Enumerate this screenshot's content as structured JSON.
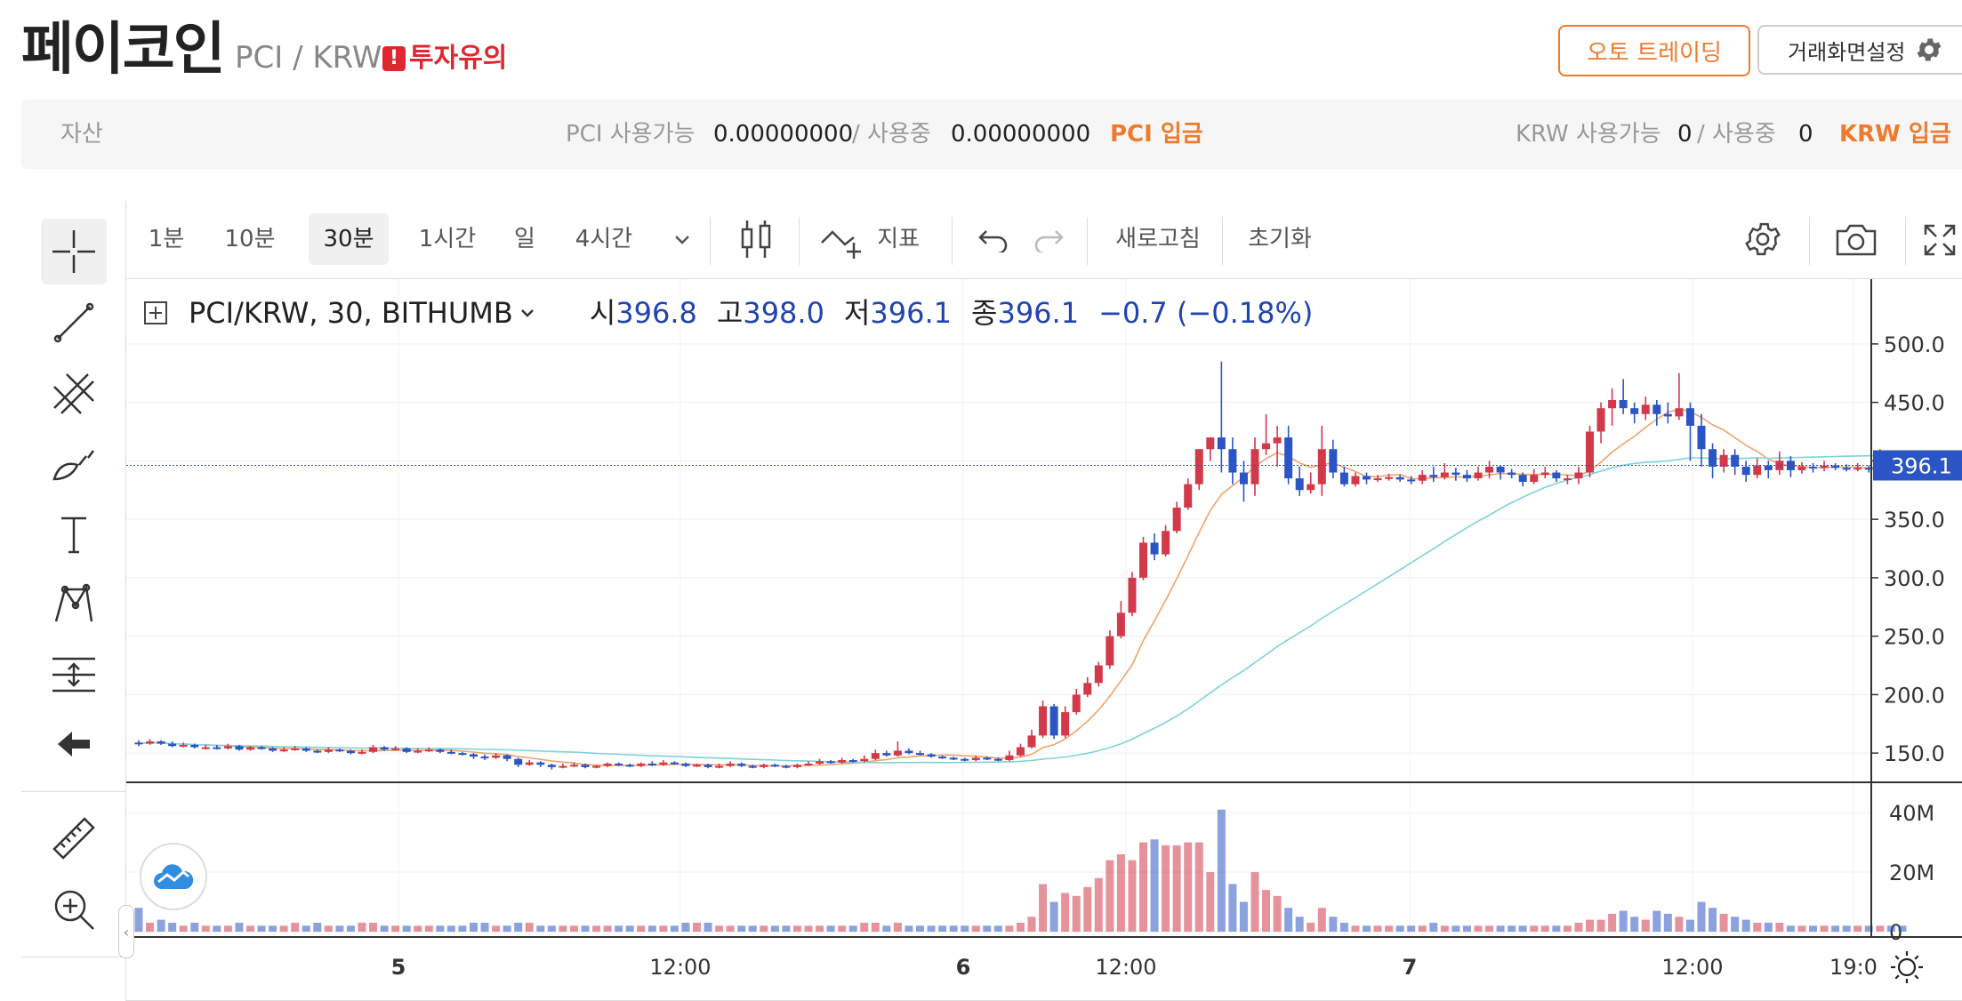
{
  "header": {
    "coin_name": "페이코인",
    "pair": "PCI / KRW",
    "warning": "투자유의",
    "warning_icon": "exclamation-icon",
    "auto_trading": "오토 트레이딩",
    "screen_settings": "거래화면설정"
  },
  "assets": {
    "label": "자산",
    "pci_available_label": "PCI 사용가능",
    "pci_available": "0.00000000",
    "pci_sep": "/ 사용중",
    "pci_in_use": "0.00000000",
    "pci_deposit": "PCI 입금",
    "krw_available_label": "KRW 사용가능",
    "krw_available": "0",
    "krw_sep": "/ 사용중",
    "krw_in_use": "0",
    "krw_deposit": "KRW 입금"
  },
  "toolbar": {
    "intervals": [
      "1분",
      "10분",
      "30분",
      "1시간",
      "일",
      "4시간"
    ],
    "active_interval": "30분",
    "indicator": "지표",
    "refresh": "새로고침",
    "reset": "초기화"
  },
  "legend": {
    "symbol": "PCI/KRW, 30, BITHUMB",
    "open_label": "시",
    "open": "396.8",
    "high_label": "고",
    "high": "398.0",
    "low_label": "저",
    "low": "396.1",
    "close_label": "종",
    "close": "396.1",
    "change": "−0.7 (−0.18%)"
  },
  "colors": {
    "up": "#d2394a",
    "down": "#2b55c4",
    "ma_short": "#f0a36a",
    "ma_long": "#7fd3d8",
    "accent": "#f07a2d"
  },
  "chart_data": {
    "type": "candlestick",
    "price_axis": {
      "ticks": [
        "500.0",
        "450.0",
        "400.0",
        "350.0",
        "300.0",
        "250.0",
        "200.0",
        "150.0"
      ],
      "range": [
        125,
        525
      ]
    },
    "last_price": "396.1",
    "volume_axis": {
      "ticks": [
        "40M",
        "20M",
        "0"
      ],
      "range": [
        0,
        46
      ]
    },
    "x_labels": [
      "5",
      "12:00",
      "6",
      "12:00",
      "7",
      "12:00",
      "19:0"
    ],
    "candles": [
      [
        159,
        158,
        161,
        156,
        8
      ],
      [
        158,
        160,
        162,
        157,
        3
      ],
      [
        160,
        158,
        161,
        157,
        4
      ],
      [
        158,
        156,
        160,
        155,
        3
      ],
      [
        156,
        157,
        159,
        155,
        2
      ],
      [
        157,
        155,
        158,
        154,
        3
      ],
      [
        155,
        155,
        157,
        153,
        2
      ],
      [
        155,
        154,
        157,
        153,
        2
      ],
      [
        154,
        156,
        158,
        153,
        2
      ],
      [
        156,
        153,
        157,
        152,
        3
      ],
      [
        153,
        155,
        156,
        152,
        2
      ],
      [
        155,
        154,
        156,
        153,
        2
      ],
      [
        154,
        152,
        155,
        151,
        2
      ],
      [
        152,
        153,
        155,
        151,
        2
      ],
      [
        153,
        154,
        156,
        152,
        3
      ],
      [
        154,
        152,
        155,
        151,
        2
      ],
      [
        152,
        151,
        153,
        150,
        3
      ],
      [
        151,
        153,
        155,
        150,
        2
      ],
      [
        153,
        152,
        154,
        151,
        2
      ],
      [
        152,
        150,
        153,
        149,
        2
      ],
      [
        150,
        151,
        153,
        149,
        3
      ],
      [
        151,
        155,
        157,
        150,
        3
      ],
      [
        155,
        153,
        156,
        152,
        2
      ],
      [
        153,
        154,
        156,
        152,
        2
      ],
      [
        154,
        151,
        155,
        150,
        2
      ],
      [
        151,
        152,
        154,
        150,
        2
      ],
      [
        152,
        153,
        155,
        151,
        2
      ],
      [
        153,
        151,
        154,
        150,
        2
      ],
      [
        151,
        150,
        153,
        149,
        2
      ],
      [
        150,
        149,
        151,
        148,
        2
      ],
      [
        149,
        147,
        150,
        145,
        3
      ],
      [
        147,
        146,
        149,
        144,
        3
      ],
      [
        146,
        148,
        150,
        145,
        2
      ],
      [
        148,
        145,
        149,
        143,
        2
      ],
      [
        145,
        140,
        146,
        138,
        3
      ],
      [
        140,
        142,
        144,
        139,
        3
      ],
      [
        142,
        140,
        143,
        138,
        2
      ],
      [
        140,
        138,
        141,
        136,
        2
      ],
      [
        138,
        139,
        141,
        137,
        2
      ],
      [
        139,
        140,
        142,
        138,
        2
      ],
      [
        140,
        138,
        141,
        137,
        2
      ],
      [
        138,
        139,
        140,
        137,
        2
      ],
      [
        139,
        141,
        142,
        138,
        2
      ],
      [
        141,
        140,
        142,
        139,
        2
      ],
      [
        140,
        139,
        141,
        138,
        2
      ],
      [
        139,
        141,
        142,
        138,
        2
      ],
      [
        141,
        140,
        143,
        139,
        2
      ],
      [
        140,
        142,
        144,
        139,
        2
      ],
      [
        142,
        141,
        143,
        140,
        2
      ],
      [
        141,
        139,
        142,
        138,
        3
      ],
      [
        139,
        140,
        141,
        138,
        3
      ],
      [
        140,
        138,
        141,
        137,
        3
      ],
      [
        138,
        139,
        141,
        137,
        2
      ],
      [
        139,
        141,
        143,
        138,
        2
      ],
      [
        141,
        139,
        142,
        138,
        2
      ],
      [
        139,
        138,
        140,
        137,
        2
      ],
      [
        138,
        140,
        141,
        137,
        2
      ],
      [
        140,
        139,
        141,
        138,
        2
      ],
      [
        139,
        138,
        140,
        137,
        2
      ],
      [
        138,
        140,
        141,
        137,
        2
      ],
      [
        140,
        141,
        143,
        139,
        2
      ],
      [
        141,
        143,
        145,
        140,
        2
      ],
      [
        143,
        142,
        144,
        141,
        2
      ],
      [
        142,
        144,
        146,
        141,
        2
      ],
      [
        144,
        143,
        145,
        142,
        2
      ],
      [
        143,
        145,
        148,
        142,
        3
      ],
      [
        145,
        150,
        153,
        144,
        3
      ],
      [
        150,
        148,
        152,
        147,
        2
      ],
      [
        148,
        152,
        160,
        147,
        3
      ],
      [
        152,
        150,
        154,
        149,
        2
      ],
      [
        150,
        149,
        152,
        148,
        2
      ],
      [
        149,
        147,
        150,
        146,
        2
      ],
      [
        147,
        146,
        148,
        145,
        2
      ],
      [
        146,
        145,
        147,
        144,
        2
      ],
      [
        145,
        144,
        146,
        143,
        2
      ],
      [
        144,
        146,
        148,
        143,
        2
      ],
      [
        146,
        145,
        147,
        144,
        2
      ],
      [
        145,
        144,
        146,
        143,
        2
      ],
      [
        144,
        148,
        152,
        143,
        2
      ],
      [
        148,
        155,
        158,
        147,
        3
      ],
      [
        155,
        165,
        170,
        154,
        5
      ],
      [
        165,
        190,
        195,
        163,
        16
      ],
      [
        190,
        165,
        192,
        162,
        10
      ],
      [
        165,
        185,
        190,
        163,
        13
      ],
      [
        185,
        200,
        205,
        183,
        12
      ],
      [
        200,
        210,
        215,
        198,
        15
      ],
      [
        210,
        225,
        228,
        207,
        18
      ],
      [
        225,
        250,
        255,
        222,
        24
      ],
      [
        250,
        270,
        280,
        248,
        26
      ],
      [
        270,
        300,
        305,
        267,
        24
      ],
      [
        300,
        330,
        335,
        298,
        30
      ],
      [
        330,
        320,
        338,
        315,
        31
      ],
      [
        320,
        340,
        345,
        318,
        29
      ],
      [
        340,
        360,
        365,
        338,
        29
      ],
      [
        360,
        380,
        385,
        358,
        30
      ],
      [
        380,
        410,
        410,
        375,
        30
      ],
      [
        410,
        420,
        420,
        400,
        20
      ],
      [
        420,
        410,
        485,
        390,
        41
      ],
      [
        410,
        390,
        420,
        380,
        16
      ],
      [
        390,
        380,
        400,
        365,
        10
      ],
      [
        380,
        410,
        420,
        370,
        20
      ],
      [
        410,
        415,
        440,
        405,
        14
      ],
      [
        415,
        420,
        430,
        395,
        12
      ],
      [
        420,
        385,
        430,
        380,
        8
      ],
      [
        385,
        375,
        395,
        370,
        5
      ],
      [
        375,
        380,
        390,
        372,
        3
      ],
      [
        380,
        410,
        430,
        370,
        8
      ],
      [
        410,
        390,
        418,
        385,
        5
      ],
      [
        390,
        380,
        395,
        378,
        3
      ],
      [
        380,
        387,
        390,
        378,
        2
      ],
      [
        387,
        384,
        390,
        380,
        2
      ],
      [
        384,
        385,
        388,
        382,
        2
      ],
      [
        385,
        386,
        389,
        383,
        2
      ],
      [
        386,
        384,
        388,
        382,
        2
      ],
      [
        384,
        383,
        387,
        380,
        2
      ],
      [
        383,
        388,
        392,
        380,
        2
      ],
      [
        388,
        386,
        395,
        382,
        3
      ],
      [
        386,
        390,
        398,
        384,
        2
      ],
      [
        390,
        388,
        394,
        383,
        2
      ],
      [
        388,
        385,
        392,
        382,
        2
      ],
      [
        385,
        390,
        395,
        383,
        2
      ],
      [
        390,
        395,
        400,
        385,
        2
      ],
      [
        395,
        390,
        396,
        384,
        2
      ],
      [
        390,
        388,
        393,
        385,
        2
      ],
      [
        388,
        382,
        390,
        378,
        2
      ],
      [
        382,
        388,
        393,
        380,
        2
      ],
      [
        388,
        390,
        395,
        385,
        2
      ],
      [
        390,
        385,
        392,
        382,
        2
      ],
      [
        385,
        385,
        388,
        380,
        2
      ],
      [
        385,
        390,
        395,
        380,
        3
      ],
      [
        390,
        425,
        430,
        386,
        4
      ],
      [
        425,
        445,
        450,
        415,
        4
      ],
      [
        445,
        452,
        462,
        430,
        6
      ],
      [
        452,
        445,
        470,
        440,
        7
      ],
      [
        445,
        440,
        450,
        432,
        5
      ],
      [
        440,
        448,
        455,
        435,
        4
      ],
      [
        448,
        440,
        452,
        430,
        7
      ],
      [
        440,
        438,
        450,
        432,
        6
      ],
      [
        438,
        445,
        475,
        435,
        5
      ],
      [
        445,
        430,
        450,
        400,
        4
      ],
      [
        430,
        410,
        440,
        395,
        10
      ],
      [
        410,
        395,
        415,
        385,
        8
      ],
      [
        395,
        405,
        410,
        390,
        6
      ],
      [
        405,
        395,
        410,
        388,
        5
      ],
      [
        395,
        388,
        400,
        382,
        4
      ],
      [
        388,
        396,
        402,
        385,
        3
      ],
      [
        396,
        392,
        400,
        385,
        3
      ],
      [
        392,
        400,
        408,
        388,
        3
      ],
      [
        400,
        392,
        404,
        386,
        2
      ],
      [
        392,
        395,
        399,
        389,
        2
      ],
      [
        395,
        394,
        398,
        390,
        2
      ],
      [
        394,
        396,
        400,
        391,
        2
      ],
      [
        396,
        394,
        398,
        392,
        2
      ],
      [
        394,
        393,
        397,
        391,
        2
      ],
      [
        393,
        394,
        398,
        391,
        2
      ],
      [
        394,
        393,
        396,
        390,
        2
      ],
      [
        393,
        397,
        410,
        390,
        2
      ],
      [
        397,
        395,
        400,
        392,
        2
      ],
      [
        396.8,
        396.1,
        398,
        396.1,
        2
      ]
    ]
  }
}
